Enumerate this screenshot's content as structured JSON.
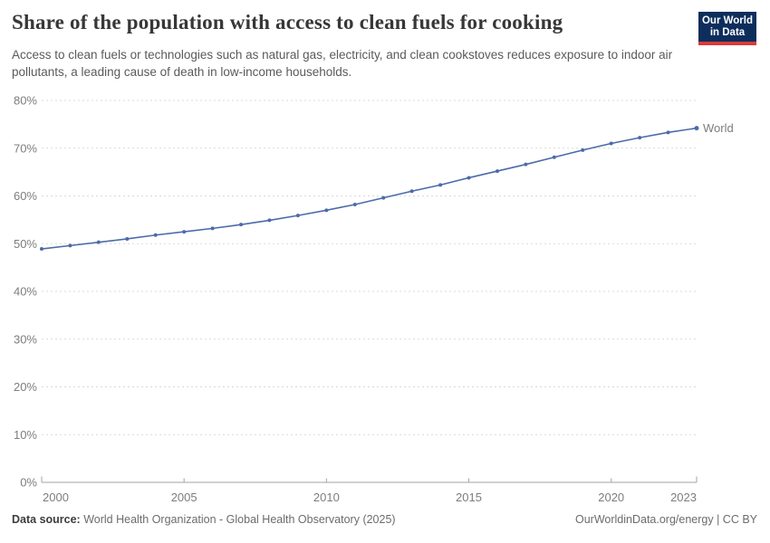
{
  "header": {
    "title": "Share of the population with access to clean fuels for cooking",
    "subtitle": "Access to clean fuels or technologies such as natural gas, electricity, and clean cookstoves reduces exposure to indoor air pollutants, a leading cause of death in low-income households.",
    "logo": {
      "line1": "Our World",
      "line2": "in Data",
      "bg_color": "#0d2e5c",
      "accent_color": "#d93a3a"
    }
  },
  "chart_data": {
    "type": "line",
    "title": "Share of the population with access to clean fuels for cooking",
    "xlabel": "",
    "ylabel": "",
    "ylim": [
      0,
      80
    ],
    "yticks": [
      0,
      10,
      20,
      30,
      40,
      50,
      60,
      70,
      80
    ],
    "ytick_suffix": "%",
    "xlim": [
      2000,
      2023
    ],
    "xticks": [
      2000,
      2005,
      2010,
      2015,
      2020,
      2023
    ],
    "grid": "horizontal-dashed",
    "legend_position": "end-of-line-label",
    "colors": {
      "grid": "#d9d9d9",
      "axis": "#a3a3a3",
      "tick_label": "#7d7d7d"
    },
    "series": [
      {
        "name": "World",
        "color": "#4c6ba8",
        "x": [
          2000,
          2001,
          2002,
          2003,
          2004,
          2005,
          2006,
          2007,
          2008,
          2009,
          2010,
          2011,
          2012,
          2013,
          2014,
          2015,
          2016,
          2017,
          2018,
          2019,
          2020,
          2021,
          2022,
          2023
        ],
        "values": [
          48.9,
          49.6,
          50.3,
          51.0,
          51.8,
          52.5,
          53.2,
          54.0,
          54.9,
          55.9,
          57.0,
          58.2,
          59.6,
          61.0,
          62.3,
          63.8,
          65.2,
          66.6,
          68.1,
          69.6,
          71.0,
          72.2,
          73.3,
          74.2
        ]
      }
    ]
  },
  "footer": {
    "datasource_label": "Data source:",
    "datasource_value": " World Health Organization - Global Health Observatory (2025)",
    "credit": "OurWorldinData.org/energy | CC BY"
  }
}
